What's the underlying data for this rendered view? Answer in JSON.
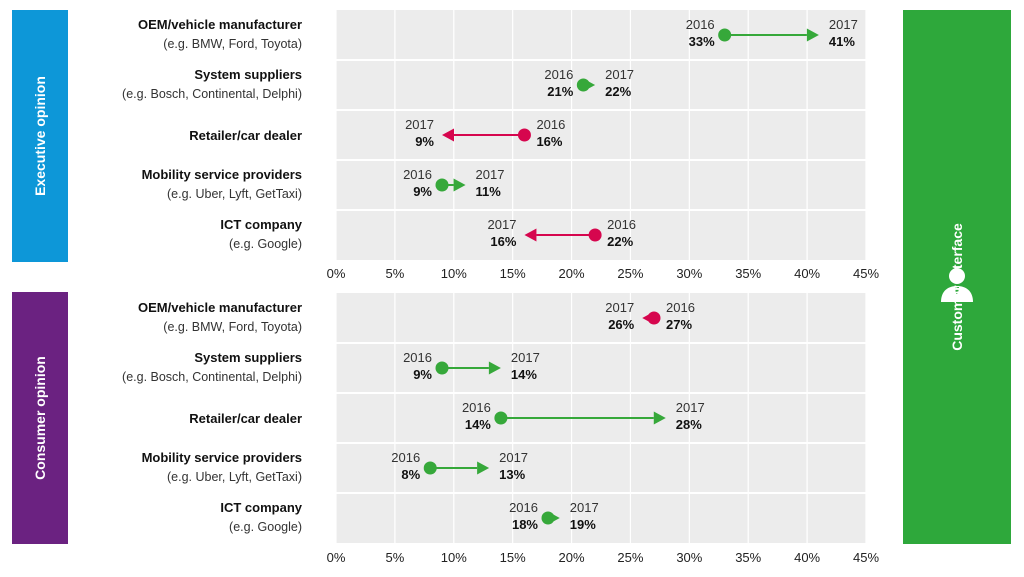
{
  "side_labels": {
    "executive": "Executive opinion",
    "consumer": "Consumer opinion",
    "customer": "Customer interface"
  },
  "colors": {
    "executive_band": "#0d97d8",
    "consumer_band": "#6b2281",
    "customer_band": "#2ea83b",
    "increase": "#36a83a",
    "decrease": "#d6064e",
    "plot_bg": "#ececec"
  },
  "icons": {
    "customer": "person-icon"
  },
  "chart_data": [
    {
      "type": "dumbbell",
      "panel": "executive",
      "xlim": [
        0,
        45
      ],
      "xticks": [
        0,
        5,
        10,
        15,
        20,
        25,
        30,
        35,
        40,
        45
      ],
      "tick_labels": [
        "0%",
        "5%",
        "10%",
        "15%",
        "20%",
        "25%",
        "30%",
        "35%",
        "40%",
        "45%"
      ],
      "from_label": "2016",
      "to_label": "2017",
      "categories": [
        {
          "name": "OEM/vehicle manufacturer",
          "sub": "(e.g. BMW, Ford, Toyota)",
          "v2016": 33,
          "v2017": 41,
          "label2016": "33%",
          "label2017": "41%"
        },
        {
          "name": "System suppliers",
          "sub": "(e.g. Bosch, Continental, Delphi)",
          "v2016": 21,
          "v2017": 22,
          "label2016": "21%",
          "label2017": "22%"
        },
        {
          "name": "Retailer/car dealer",
          "sub": "",
          "v2016": 16,
          "v2017": 9,
          "label2016": "16%",
          "label2017": "9%"
        },
        {
          "name": "Mobility service providers",
          "sub": "(e.g. Uber, Lyft, GetTaxi)",
          "v2016": 9,
          "v2017": 11,
          "label2016": "9%",
          "label2017": "11%"
        },
        {
          "name": "ICT company",
          "sub": "(e.g. Google)",
          "v2016": 22,
          "v2017": 16,
          "label2016": "22%",
          "label2017": "16%"
        }
      ]
    },
    {
      "type": "dumbbell",
      "panel": "consumer",
      "xlim": [
        0,
        45
      ],
      "xticks": [
        0,
        5,
        10,
        15,
        20,
        25,
        30,
        35,
        40,
        45
      ],
      "tick_labels": [
        "0%",
        "5%",
        "10%",
        "15%",
        "20%",
        "25%",
        "30%",
        "35%",
        "40%",
        "45%"
      ],
      "from_label": "2016",
      "to_label": "2017",
      "categories": [
        {
          "name": "OEM/vehicle manufacturer",
          "sub": "(e.g. BMW, Ford, Toyota)",
          "v2016": 27,
          "v2017": 26,
          "label2016": "27%",
          "label2017": "26%"
        },
        {
          "name": "System suppliers",
          "sub": "(e.g. Bosch, Continental, Delphi)",
          "v2016": 9,
          "v2017": 14,
          "label2016": "9%",
          "label2017": "14%"
        },
        {
          "name": "Retailer/car dealer",
          "sub": "",
          "v2016": 14,
          "v2017": 28,
          "label2016": "14%",
          "label2017": "28%"
        },
        {
          "name": "Mobility service providers",
          "sub": "(e.g. Uber, Lyft, GetTaxi)",
          "v2016": 8,
          "v2017": 13,
          "label2016": "8%",
          "label2017": "13%"
        },
        {
          "name": "ICT company",
          "sub": "(e.g. Google)",
          "v2016": 18,
          "v2017": 19,
          "label2016": "18%",
          "label2017": "19%"
        }
      ]
    }
  ]
}
